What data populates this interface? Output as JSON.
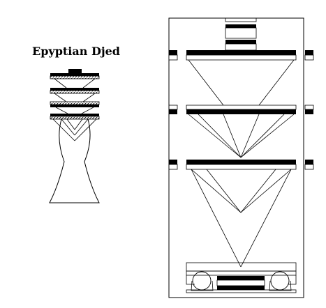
{
  "title": "Epyptian Djed",
  "colors": {
    "ink": "#000000",
    "paper": "#ffffff"
  }
}
